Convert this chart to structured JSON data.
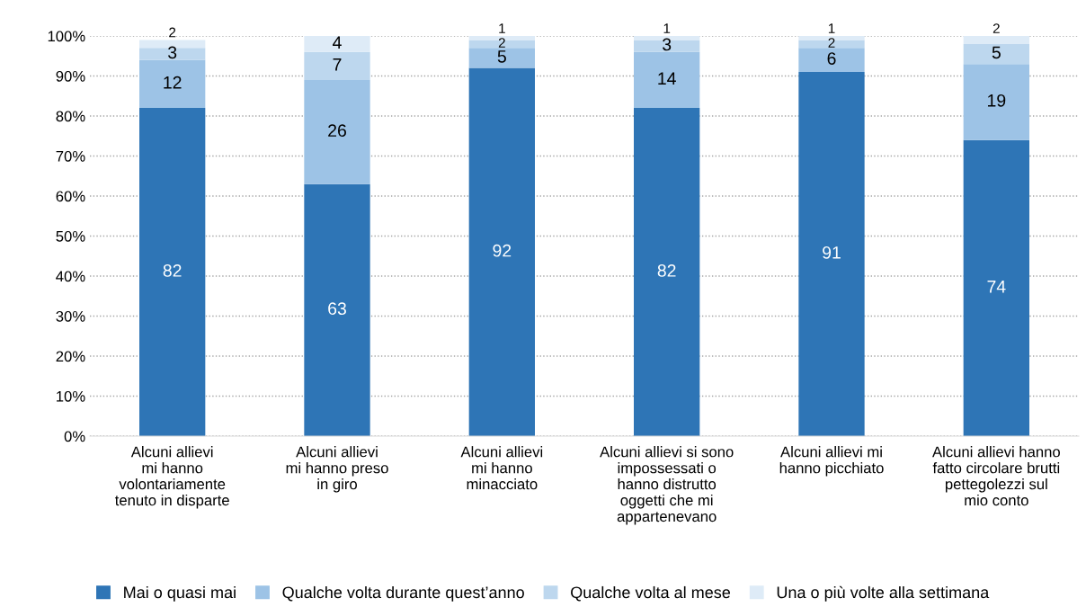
{
  "chart_data": {
    "type": "bar",
    "stacked": true,
    "data_labels": true,
    "grid": "y",
    "legend": "bottom",
    "categories": [
      "Alcuni allievi\nmi hanno\nvolontariamente\ntenuto in disparte",
      "Alcuni allievi\nmi hanno preso\nin giro",
      "Alcuni allievi\nmi hanno\nminacciato",
      "Alcuni allievi si sono\nimpossessati o\nhanno distrutto\noggetti che mi\nappartenevano",
      "Alcuni allievi mi\nhanno picchiato",
      "Alcuni allievi hanno\nfatto circolare brutti\npettegolezzi sul\nmio conto"
    ],
    "series": [
      {
        "name": "Mai o quasi mai",
        "color": "#2e75b6",
        "values": [
          82,
          63,
          92,
          82,
          91,
          74
        ]
      },
      {
        "name": "Qualche volta durante quest’anno",
        "color": "#9dc3e6",
        "values": [
          12,
          26,
          5,
          14,
          6,
          19
        ]
      },
      {
        "name": "Qualche volta al mese",
        "color": "#bdd7ee",
        "values": [
          3,
          7,
          2,
          3,
          2,
          5
        ]
      },
      {
        "name": "Una o più volte alla settimana",
        "color": "#deebf7",
        "values": [
          2,
          4,
          1,
          1,
          1,
          2
        ]
      }
    ],
    "ylim": [
      0,
      100
    ],
    "yticks": [
      {
        "value": 0,
        "label": "0%"
      },
      {
        "value": 10,
        "label": "10%"
      },
      {
        "value": 20,
        "label": "20%"
      },
      {
        "value": 30,
        "label": "30%"
      },
      {
        "value": 40,
        "label": "40%"
      },
      {
        "value": 50,
        "label": "50%"
      },
      {
        "value": 60,
        "label": "60%"
      },
      {
        "value": 70,
        "label": "70%"
      },
      {
        "value": 80,
        "label": "80%"
      },
      {
        "value": 90,
        "label": "90%"
      },
      {
        "value": 100,
        "label": "100%"
      }
    ]
  }
}
